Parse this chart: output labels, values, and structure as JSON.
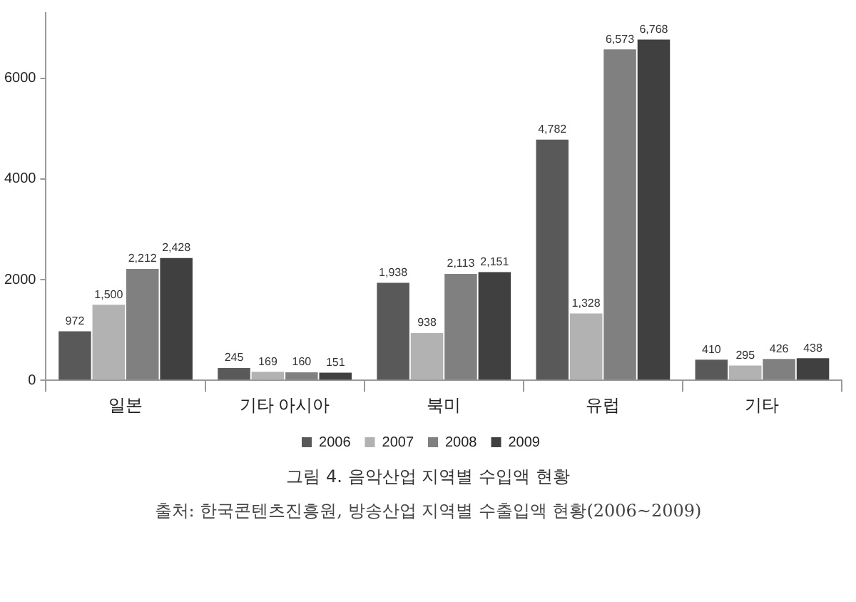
{
  "chart_data": {
    "type": "bar",
    "title": "그림 4. 음악산업 지역별 수입액 현황",
    "categories": [
      "일본",
      "기타 아시아",
      "북미",
      "유럽",
      "기타"
    ],
    "series": [
      {
        "name": "2006",
        "color": "#595959",
        "values": [
          972,
          245,
          1938,
          4782,
          410
        ],
        "value_labels": [
          "972",
          "245",
          "1,938",
          "4,782",
          "410"
        ]
      },
      {
        "name": "2007",
        "color": "#b2b2b2",
        "values": [
          1500,
          169,
          938,
          1328,
          295
        ],
        "value_labels": [
          "1,500",
          "169",
          "938",
          "1,328",
          "295"
        ]
      },
      {
        "name": "2008",
        "color": "#808080",
        "values": [
          2212,
          160,
          2113,
          6573,
          426
        ],
        "value_labels": [
          "2,212",
          "160",
          "2,113",
          "6,573",
          "426"
        ]
      },
      {
        "name": "2009",
        "color": "#404040",
        "values": [
          2428,
          151,
          2151,
          6768,
          438
        ],
        "value_labels": [
          "2,428",
          "151",
          "2,151",
          "6,768",
          "438"
        ]
      }
    ],
    "ylim": [
      0,
      7300
    ],
    "yticks": [
      0,
      2000,
      4000,
      6000
    ],
    "grid": false,
    "legend": "bottom",
    "annotations": [
      "출처: 한국콘텐츠진흥원, 방송산업 지역별 수출입액 현황(2006~2009)"
    ]
  }
}
